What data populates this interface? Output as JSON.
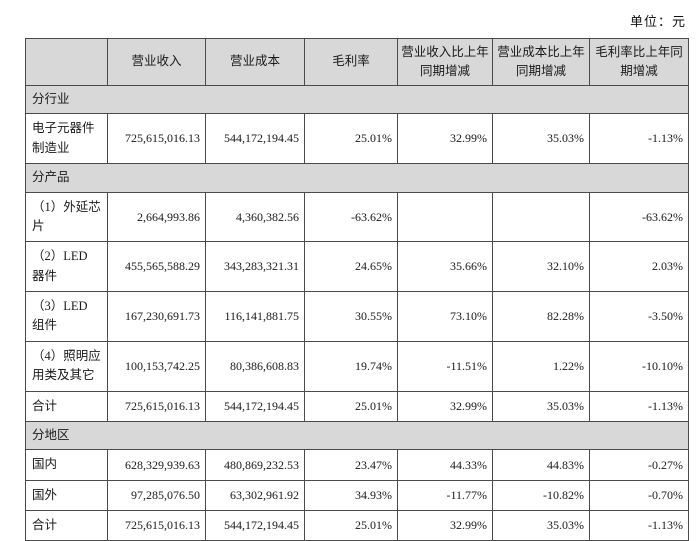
{
  "unit_label": "单位：元",
  "colors": {
    "header_bg": "#d8d8d8",
    "border": "#4a4a4a",
    "text": "#1a1a1a",
    "page_bg": "#ffffff"
  },
  "table": {
    "columns": [
      "",
      "营业收入",
      "营业成本",
      "毛利率",
      "营业收入比上年同期增减",
      "营业成本比上年同期增减",
      "毛利率比上年同期增减"
    ],
    "sections": [
      {
        "title": "分行业",
        "rows": [
          {
            "label": "电子元器件制造业",
            "values": [
              "725,615,016.13",
              "544,172,194.45",
              "25.01%",
              "32.99%",
              "35.03%",
              "-1.13%"
            ]
          }
        ]
      },
      {
        "title": "分产品",
        "rows": [
          {
            "label": "（1）外延芯片",
            "values": [
              "2,664,993.86",
              "4,360,382.56",
              "-63.62%",
              "",
              "",
              "-63.62%"
            ]
          },
          {
            "label": "（2）LED 器件",
            "values": [
              "455,565,588.29",
              "343,283,321.31",
              "24.65%",
              "35.66%",
              "32.10%",
              "2.03%"
            ]
          },
          {
            "label": "（3）LED 组件",
            "values": [
              "167,230,691.73",
              "116,141,881.75",
              "30.55%",
              "73.10%",
              "82.28%",
              "-3.50%"
            ]
          },
          {
            "label": "（4）照明应用类及其它",
            "values": [
              "100,153,742.25",
              "80,386,608.83",
              "19.74%",
              "-11.51%",
              "1.22%",
              "-10.10%"
            ]
          },
          {
            "label": "合计",
            "values": [
              "725,615,016.13",
              "544,172,194.45",
              "25.01%",
              "32.99%",
              "35.03%",
              "-1.13%"
            ]
          }
        ]
      },
      {
        "title": "分地区",
        "rows": [
          {
            "label": "国内",
            "values": [
              "628,329,939.63",
              "480,869,232.53",
              "23.47%",
              "44.33%",
              "44.83%",
              "-0.27%"
            ]
          },
          {
            "label": "国外",
            "values": [
              "97,285,076.50",
              "63,302,961.92",
              "34.93%",
              "-11.77%",
              "-10.82%",
              "-0.70%"
            ]
          },
          {
            "label": "合计",
            "values": [
              "725,615,016.13",
              "544,172,194.45",
              "25.01%",
              "32.99%",
              "35.03%",
              "-1.13%"
            ]
          }
        ]
      }
    ]
  }
}
